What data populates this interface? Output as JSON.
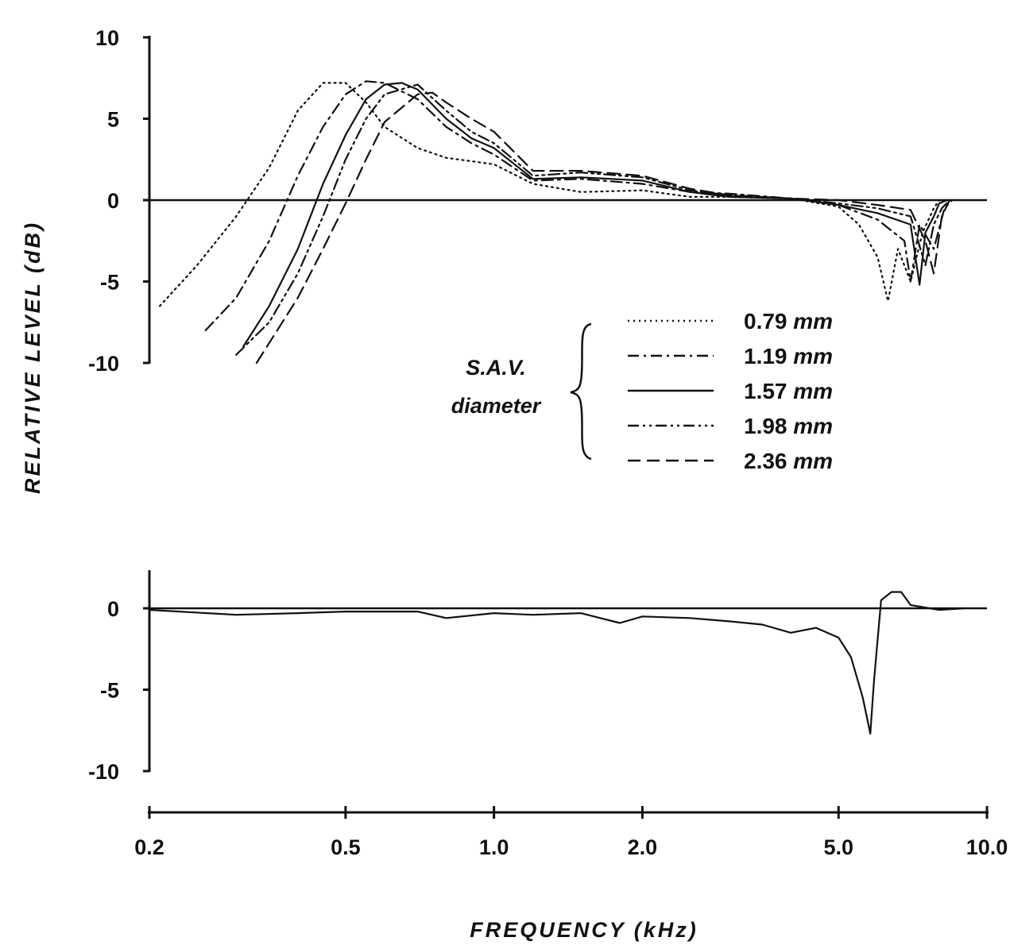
{
  "chart_data": [
    {
      "type": "line",
      "ylabel": "RELATIVE LEVEL (dB)",
      "xlabel": "FREQUENCY (kHz)",
      "x_scale": "log",
      "xlim": [
        0.2,
        10.0
      ],
      "ylim": [
        -10,
        10
      ],
      "x_ticks": [
        "0.2",
        "0.5",
        "1.0",
        "2.0",
        "5.0",
        "10.0"
      ],
      "x_tick_values": [
        0.2,
        0.5,
        1.0,
        2.0,
        5.0,
        10.0
      ],
      "y_ticks": [
        "10",
        "5",
        "0",
        "-5",
        "-10"
      ],
      "y_tick_values": [
        10,
        5,
        0,
        -5,
        -10
      ],
      "legend_title": "S.A.V. diameter",
      "legend_placement": "center-right",
      "series": [
        {
          "name": "0.79 mm",
          "style": "dotted",
          "points": [
            [
              0.21,
              -6.5
            ],
            [
              0.25,
              -4.0
            ],
            [
              0.3,
              -1.0
            ],
            [
              0.35,
              2.0
            ],
            [
              0.4,
              5.5
            ],
            [
              0.45,
              7.2
            ],
            [
              0.5,
              7.2
            ],
            [
              0.55,
              6.0
            ],
            [
              0.6,
              4.5
            ],
            [
              0.7,
              3.2
            ],
            [
              0.8,
              2.6
            ],
            [
              1.0,
              2.2
            ],
            [
              1.2,
              1.0
            ],
            [
              1.5,
              0.5
            ],
            [
              2.0,
              0.6
            ],
            [
              2.5,
              0.2
            ],
            [
              3.0,
              0.2
            ],
            [
              4.0,
              0.1
            ],
            [
              5.0,
              -0.4
            ],
            [
              5.5,
              -1.5
            ],
            [
              6.0,
              -3.5
            ],
            [
              6.3,
              -6.2
            ],
            [
              6.6,
              -3.0
            ],
            [
              7.0,
              -5.0
            ],
            [
              7.4,
              -2.0
            ],
            [
              7.8,
              -0.5
            ],
            [
              8.0,
              0.0
            ]
          ]
        },
        {
          "name": "1.19 mm",
          "style": "dash-dot",
          "points": [
            [
              0.26,
              -8.0
            ],
            [
              0.3,
              -6.0
            ],
            [
              0.35,
              -2.5
            ],
            [
              0.4,
              1.5
            ],
            [
              0.45,
              4.5
            ],
            [
              0.5,
              6.5
            ],
            [
              0.55,
              7.3
            ],
            [
              0.6,
              7.2
            ],
            [
              0.7,
              6.2
            ],
            [
              0.8,
              4.5
            ],
            [
              0.9,
              3.5
            ],
            [
              1.0,
              2.8
            ],
            [
              1.2,
              1.2
            ],
            [
              1.5,
              1.3
            ],
            [
              2.0,
              1.0
            ],
            [
              2.5,
              0.5
            ],
            [
              3.0,
              0.4
            ],
            [
              4.0,
              0.1
            ],
            [
              5.0,
              -0.3
            ],
            [
              6.0,
              -1.2
            ],
            [
              6.8,
              -2.5
            ],
            [
              7.0,
              -5.0
            ],
            [
              7.3,
              -1.5
            ],
            [
              7.8,
              -3.0
            ],
            [
              8.2,
              -0.5
            ],
            [
              8.5,
              0.0
            ]
          ]
        },
        {
          "name": "1.57 mm",
          "style": "solid",
          "points": [
            [
              0.31,
              -9.0
            ],
            [
              0.35,
              -6.5
            ],
            [
              0.4,
              -3.0
            ],
            [
              0.45,
              1.0
            ],
            [
              0.5,
              4.0
            ],
            [
              0.55,
              6.2
            ],
            [
              0.6,
              7.1
            ],
            [
              0.65,
              7.2
            ],
            [
              0.7,
              6.8
            ],
            [
              0.8,
              5.0
            ],
            [
              0.9,
              3.8
            ],
            [
              1.0,
              3.2
            ],
            [
              1.2,
              1.3
            ],
            [
              1.5,
              1.4
            ],
            [
              2.0,
              1.2
            ],
            [
              2.5,
              0.5
            ],
            [
              3.0,
              0.2
            ],
            [
              4.0,
              0.1
            ],
            [
              5.0,
              -0.3
            ],
            [
              6.0,
              -0.8
            ],
            [
              7.0,
              -1.5
            ],
            [
              7.3,
              -5.2
            ],
            [
              7.5,
              -2.0
            ],
            [
              7.8,
              -1.0
            ],
            [
              8.0,
              -0.2
            ],
            [
              8.3,
              0.0
            ]
          ]
        },
        {
          "name": "1.98 mm",
          "style": "dash-dot-dot",
          "points": [
            [
              0.3,
              -9.5
            ],
            [
              0.35,
              -7.5
            ],
            [
              0.4,
              -4.5
            ],
            [
              0.45,
              -1.0
            ],
            [
              0.5,
              2.5
            ],
            [
              0.55,
              5.0
            ],
            [
              0.6,
              6.5
            ],
            [
              0.7,
              7.1
            ],
            [
              0.8,
              5.5
            ],
            [
              0.9,
              4.2
            ],
            [
              1.0,
              3.5
            ],
            [
              1.2,
              1.5
            ],
            [
              1.5,
              1.7
            ],
            [
              2.0,
              1.4
            ],
            [
              2.5,
              0.6
            ],
            [
              3.0,
              0.3
            ],
            [
              4.0,
              0.1
            ],
            [
              5.0,
              -0.2
            ],
            [
              6.0,
              -0.5
            ],
            [
              7.0,
              -1.0
            ],
            [
              7.5,
              -4.0
            ],
            [
              7.8,
              -1.5
            ],
            [
              8.1,
              -0.5
            ],
            [
              8.4,
              0.0
            ]
          ]
        },
        {
          "name": "2.36 mm",
          "style": "dashed",
          "points": [
            [
              0.33,
              -10.0
            ],
            [
              0.4,
              -6.0
            ],
            [
              0.45,
              -3.0
            ],
            [
              0.5,
              -0.2
            ],
            [
              0.55,
              2.5
            ],
            [
              0.6,
              4.8
            ],
            [
              0.7,
              6.5
            ],
            [
              0.75,
              6.6
            ],
            [
              0.8,
              6.0
            ],
            [
              0.9,
              5.0
            ],
            [
              1.0,
              4.2
            ],
            [
              1.2,
              1.8
            ],
            [
              1.5,
              1.8
            ],
            [
              2.0,
              1.5
            ],
            [
              2.5,
              0.7
            ],
            [
              3.0,
              0.3
            ],
            [
              4.0,
              0.1
            ],
            [
              5.0,
              0.0
            ],
            [
              6.0,
              -0.3
            ],
            [
              7.0,
              -0.6
            ],
            [
              7.5,
              -2.5
            ],
            [
              7.8,
              -4.5
            ],
            [
              8.1,
              -1.0
            ],
            [
              8.4,
              0.0
            ]
          ]
        }
      ]
    },
    {
      "type": "line",
      "x_scale": "log",
      "xlim": [
        0.2,
        10.0
      ],
      "ylim": [
        -10,
        2
      ],
      "y_ticks": [
        "0",
        "-5",
        "-10"
      ],
      "y_tick_values": [
        0,
        -5,
        -10
      ],
      "series": [
        {
          "style": "solid",
          "points": [
            [
              0.2,
              -0.1
            ],
            [
              0.3,
              -0.4
            ],
            [
              0.4,
              -0.3
            ],
            [
              0.5,
              -0.2
            ],
            [
              0.7,
              -0.2
            ],
            [
              0.8,
              -0.6
            ],
            [
              1.0,
              -0.3
            ],
            [
              1.2,
              -0.4
            ],
            [
              1.5,
              -0.3
            ],
            [
              1.8,
              -0.9
            ],
            [
              2.0,
              -0.5
            ],
            [
              2.5,
              -0.6
            ],
            [
              3.0,
              -0.8
            ],
            [
              3.5,
              -1.0
            ],
            [
              4.0,
              -1.5
            ],
            [
              4.5,
              -1.2
            ],
            [
              5.0,
              -1.8
            ],
            [
              5.3,
              -3.0
            ],
            [
              5.6,
              -5.5
            ],
            [
              5.8,
              -7.7
            ],
            [
              5.9,
              -4.5
            ],
            [
              6.1,
              0.5
            ],
            [
              6.4,
              1.0
            ],
            [
              6.7,
              1.0
            ],
            [
              7.0,
              0.2
            ],
            [
              8.0,
              -0.1
            ],
            [
              9.0,
              0.0
            ]
          ]
        }
      ]
    }
  ]
}
